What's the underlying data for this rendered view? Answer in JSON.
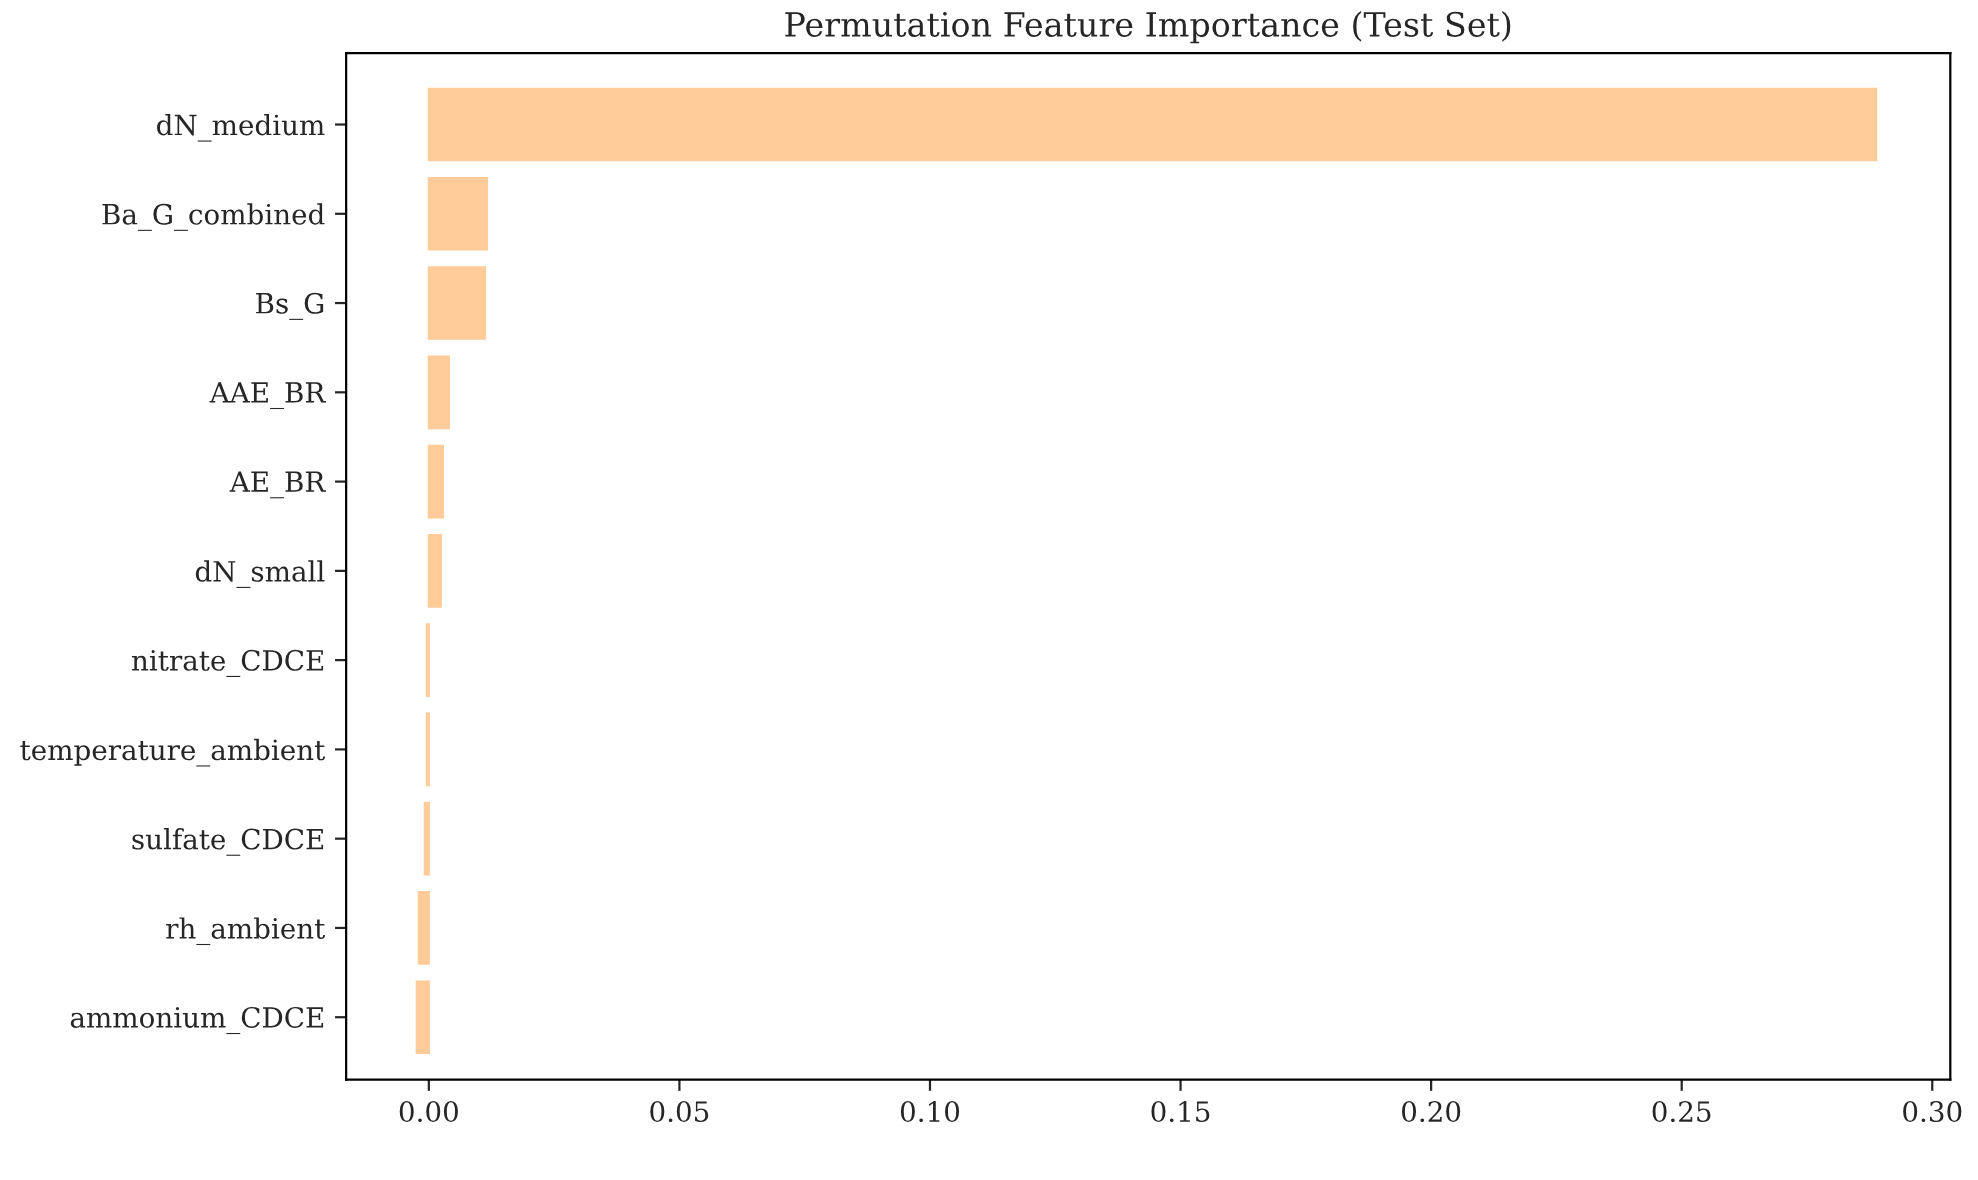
{
  "chart_data": {
    "type": "bar",
    "orientation": "horizontal",
    "title": "Permutation Feature Importance (Test Set)",
    "categories": [
      "dN_medium",
      "Ba_G_combined",
      "Bs_G",
      "AAE_BR",
      "AE_BR",
      "dN_small",
      "nitrate_CDCE",
      "temperature_ambient",
      "sulfate_CDCE",
      "rh_ambient",
      "ammonium_CDCE"
    ],
    "values": [
      0.2888,
      0.0116,
      0.0112,
      0.004,
      0.0028,
      0.0024,
      -0.0004,
      -0.0004,
      -0.0008,
      -0.002,
      -0.0024
    ],
    "color": "#ffcc99",
    "xlim": [
      -0.0165,
      0.3036
    ],
    "xticks": [
      {
        "value": 0,
        "label": "0.00"
      },
      0.05,
      {
        "value": 0.1,
        "label": "0.10"
      },
      0.15,
      {
        "value": 0.2,
        "label": "0.20"
      },
      0.25,
      {
        "value": 0.3,
        "label": "0.30"
      }
    ],
    "grid": false
  }
}
